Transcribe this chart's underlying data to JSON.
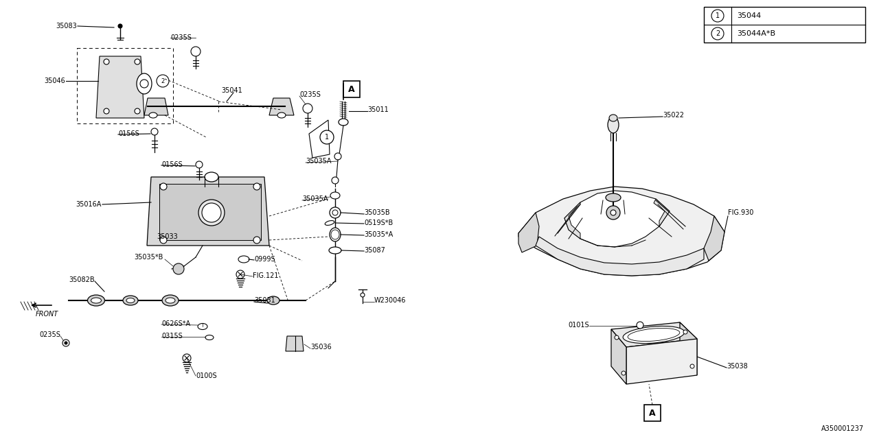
{
  "bg_color": "#ffffff",
  "line_color": "#000000",
  "legend": [
    {
      "num": "1",
      "label": "35044"
    },
    {
      "num": "2",
      "label": "35044A*B"
    }
  ]
}
